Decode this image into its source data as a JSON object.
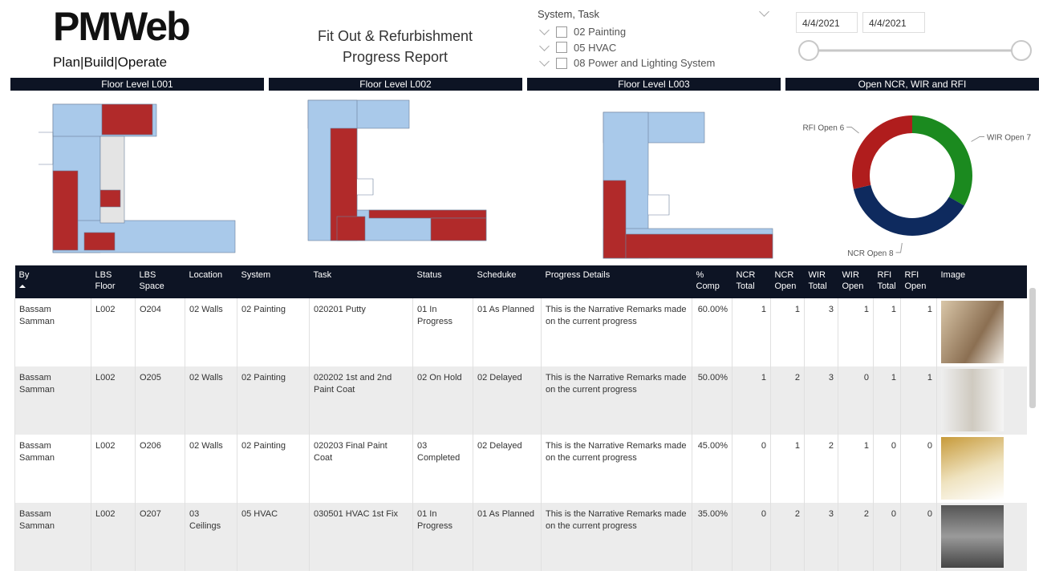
{
  "logo": {
    "name": "PMWeb",
    "tagline": "Plan|Build|Operate"
  },
  "header": {
    "title": "Fit Out & Refurbishment Progress Report"
  },
  "slicer": {
    "label": "System, Task",
    "items": [
      "02 Painting",
      "05 HVAC",
      "08 Power and Lighting System"
    ]
  },
  "date_range": {
    "start": "4/4/2021",
    "end": "4/4/2021"
  },
  "panels": [
    "Floor Level L001",
    "Floor Level L002",
    "Floor Level L003"
  ],
  "chart_data": {
    "type": "pie",
    "title": "Open NCR, WIR and RFI",
    "donut": true,
    "categories": [
      "WIR Open",
      "NCR Open",
      "RFI Open"
    ],
    "values": [
      7,
      8,
      6
    ],
    "colors": [
      "#1b8a1f",
      "#0e2a5e",
      "#b01d1d"
    ]
  },
  "table": {
    "columns": [
      "By",
      "LBS Floor",
      "LBS Space",
      "Location",
      "System",
      "Task",
      "Status",
      "Scheduke",
      "Progress Details",
      "% Comp",
      "NCR Total",
      "NCR Open",
      "WIR Total",
      "WIR Open",
      "RFI Total",
      "RFI Open",
      "Image"
    ],
    "rows": [
      [
        "Bassam Samman",
        "L002",
        "O204",
        "02 Walls",
        "02 Painting",
        "020201 Putty",
        "01 In Progress",
        "01 As Planned",
        "This is the Narrative Remarks made on the current progress",
        "60.00%",
        1,
        1,
        3,
        1,
        1,
        1
      ],
      [
        "Bassam Samman",
        "L002",
        "O205",
        "02 Walls",
        "02 Painting",
        "020202 1st and 2nd Paint Coat",
        "02 On Hold",
        "02 Delayed",
        "This is the Narrative Remarks made on the current progress",
        "50.00%",
        1,
        2,
        3,
        0,
        1,
        1
      ],
      [
        "Bassam Samman",
        "L002",
        "O206",
        "02 Walls",
        "02 Painting",
        "020203 Final Paint Coat",
        "03 Completed",
        "02 Delayed",
        "This is the Narrative Remarks made on the current progress",
        "45.00%",
        0,
        1,
        2,
        1,
        0,
        0
      ],
      [
        "Bassam Samman",
        "L002",
        "O207",
        "03 Ceilings",
        "05 HVAC",
        "030501 HVAC 1st Fix",
        "01 In Progress",
        "01 As Planned",
        "This is the Narrative Remarks made on the current progress",
        "35.00%",
        0,
        2,
        3,
        2,
        0,
        0
      ]
    ]
  }
}
